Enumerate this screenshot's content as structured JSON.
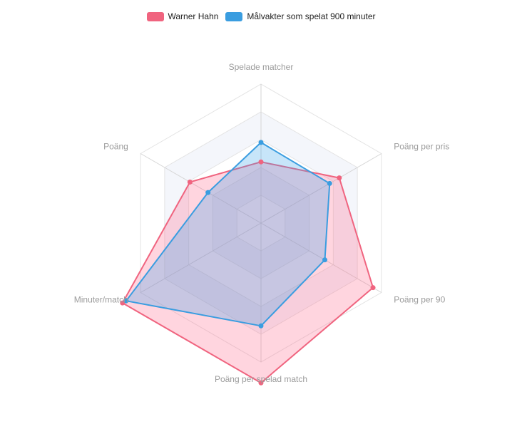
{
  "chart_data": {
    "type": "radar",
    "axes": [
      "Spelade matcher",
      "Poäng per pris",
      "Poäng per 90",
      "Poäng per spelad match",
      "Minuter/match",
      "Poäng"
    ],
    "scale": {
      "min": 0,
      "max": 5,
      "steps": 5
    },
    "series": [
      {
        "name": "Warner Hahn",
        "color": "#f0647f",
        "fill": "rgba(255,105,140,0.28)",
        "values": [
          2.2,
          3.25,
          4.65,
          5.75,
          5.75,
          2.95
        ]
      },
      {
        "name": "Målvakter som spelat 900 minuter",
        "color": "#3a9de0",
        "fill": "rgba(54,162,235,0.28)",
        "values": [
          2.9,
          2.85,
          2.65,
          3.7,
          5.6,
          2.2
        ]
      }
    ],
    "legend": "top-center",
    "grid": true
  }
}
